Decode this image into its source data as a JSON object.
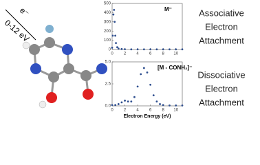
{
  "beam": {
    "particle": "e⁻",
    "energy": "0-12 eV"
  },
  "captions": [
    [
      "Associative",
      "Electron",
      "Attachment"
    ],
    [
      "Dissociative",
      "Electron",
      "Attachment"
    ]
  ],
  "chart_data": [
    {
      "type": "scatter",
      "annotation": "M⁻",
      "color": "#2f4f8f",
      "x": [
        0.0,
        0.1,
        0.2,
        0.3,
        0.4,
        0.5,
        0.6,
        0.8,
        1.0,
        1.5,
        2,
        3,
        4,
        5,
        6,
        7,
        8,
        9,
        10,
        11
      ],
      "values": [
        20,
        150,
        380,
        430,
        300,
        150,
        70,
        25,
        10,
        5,
        3,
        2,
        2,
        2,
        2,
        2,
        2,
        2,
        2,
        2
      ],
      "xlim": [
        0,
        11
      ],
      "xticks": [
        0,
        2,
        4,
        6,
        8,
        10
      ],
      "ylim": [
        0,
        500
      ],
      "yticks": [
        0,
        100,
        200,
        300,
        400,
        500
      ]
    },
    {
      "type": "scatter",
      "annotation": "[M - CONH₂]⁻",
      "color": "#2f4f8f",
      "xlabel": "Electron Energy (eV)",
      "x": [
        0,
        0.5,
        1,
        1.5,
        2,
        2.5,
        3,
        3.5,
        4,
        4.5,
        5,
        5.5,
        6,
        6.5,
        7,
        7.5,
        8,
        9,
        10,
        11
      ],
      "values": [
        0.1,
        0.1,
        0.2,
        0.4,
        0.6,
        0.5,
        0.5,
        1.0,
        2.2,
        3.6,
        4.3,
        3.8,
        2.4,
        1.2,
        0.5,
        0.2,
        0.1,
        0.05,
        0.05,
        0.05
      ],
      "xlim": [
        0,
        11
      ],
      "xticks": [
        0,
        2,
        4,
        6,
        8,
        10
      ],
      "ylim": [
        0,
        5
      ],
      "yticks": [
        {
          "value": 0,
          "label": "0.0"
        },
        {
          "value": 2.5,
          "label": "2.5"
        },
        {
          "value": 5,
          "label": "5.0"
        }
      ]
    }
  ]
}
